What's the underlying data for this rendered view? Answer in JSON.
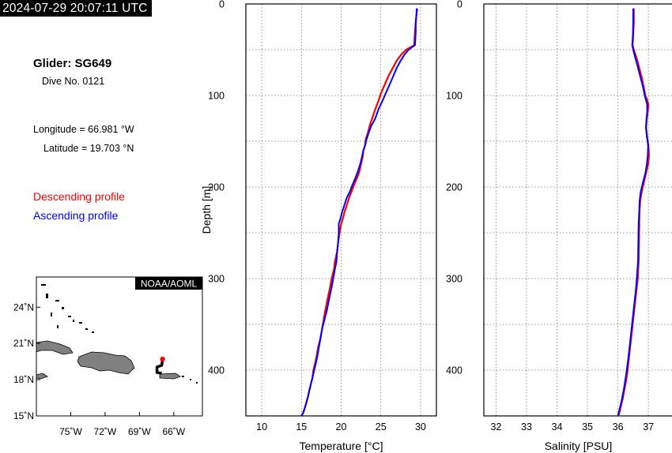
{
  "timestamp": "2024-07-29 20:07:11 UTC",
  "glider": {
    "title": "Glider: SG649",
    "dive": "Dive No. 0121",
    "longitude": "Longitude = 66.981 °W",
    "latitude": "Latitude = 19.703 °N"
  },
  "legend": {
    "descending": "Descending profile",
    "ascending": "Ascending profile"
  },
  "colors": {
    "descending": "#ff0000",
    "ascending": "#0000ff",
    "land": "#808080",
    "track": "#000000",
    "position": "#ff0000"
  },
  "map": {
    "badge": "NOAA/AOML",
    "lat_ticks": [
      {
        "v": 24,
        "label": "24˚N"
      },
      {
        "v": 21,
        "label": "21˚N"
      },
      {
        "v": 18,
        "label": "18˚N"
      },
      {
        "v": 15,
        "label": "15˚N"
      }
    ],
    "lon_ticks": [
      {
        "v": -75,
        "label": "75˚W"
      },
      {
        "v": -72,
        "label": "72˚W"
      },
      {
        "v": -69,
        "label": "69˚W"
      },
      {
        "v": -66,
        "label": "66˚W"
      }
    ],
    "lon_range": [
      -78,
      -63.5
    ],
    "lat_range": [
      15,
      26.5
    ],
    "glider_position": {
      "lon": -66.981,
      "lat": 19.703
    },
    "icon": "region-map"
  },
  "chart_data": [
    {
      "type": "line",
      "xlabel": "Temperature [°C]",
      "ylabel": "Depth [m]",
      "xlim": [
        8,
        32
      ],
      "ylim": [
        450,
        0
      ],
      "xticks": [
        10,
        15,
        20,
        25,
        30
      ],
      "yticks": [
        0,
        100,
        200,
        300,
        400
      ],
      "grid": true,
      "series": [
        {
          "name": "Descending profile",
          "x": [
            29.6,
            29.5,
            29.4,
            29.3,
            29.2,
            28.2,
            27.6,
            27.0,
            26.5,
            26.0,
            25.5,
            25.0,
            24.7,
            24.3,
            23.9,
            23.6,
            23.4,
            23.1,
            23.0,
            22.8,
            22.7,
            22.5,
            22.3,
            22.0,
            21.6,
            21.3,
            21.0,
            20.7,
            20.4,
            20.2,
            20.0,
            19.8,
            19.6,
            19.5,
            19.2,
            19.1,
            18.8,
            18.6,
            18.3,
            18.0,
            17.8,
            17.6,
            17.4,
            17.1,
            16.9,
            16.7,
            16.5,
            16.4,
            16.2,
            16.0,
            15.8,
            15.6,
            15.4,
            15.2,
            15.0
          ],
          "y": [
            5,
            10,
            20,
            30,
            45,
            50,
            55,
            62,
            70,
            78,
            88,
            98,
            106,
            115,
            125,
            133,
            140,
            148,
            155,
            160,
            168,
            175,
            183,
            190,
            198,
            205,
            212,
            220,
            228,
            235,
            240,
            250,
            262,
            270,
            282,
            290,
            300,
            310,
            322,
            335,
            345,
            355,
            365,
            375,
            385,
            393,
            400,
            408,
            415,
            422,
            430,
            436,
            442,
            447,
            450
          ]
        },
        {
          "name": "Ascending profile",
          "x": [
            29.5,
            29.5,
            29.4,
            29.4,
            29.3,
            28.5,
            28.0,
            27.5,
            27.0,
            26.6,
            26.1,
            25.6,
            25.2,
            24.7,
            24.3,
            23.8,
            23.5,
            23.2,
            23.0,
            22.8,
            22.6,
            22.4,
            22.1,
            21.8,
            21.4,
            21.1,
            20.7,
            20.4,
            20.1,
            19.9,
            19.7,
            19.7,
            19.6,
            19.5,
            19.4,
            19.2,
            19.0,
            18.8,
            18.5,
            18.2,
            17.9,
            17.6,
            17.4,
            17.2,
            17.0,
            16.8,
            16.6,
            16.4,
            16.2,
            16.0,
            15.8,
            15.6,
            15.4,
            15.2,
            15.0
          ],
          "y": [
            5,
            10,
            20,
            30,
            45,
            50,
            55,
            62,
            70,
            78,
            88,
            98,
            106,
            115,
            125,
            133,
            140,
            148,
            155,
            160,
            168,
            175,
            183,
            190,
            198,
            205,
            212,
            220,
            228,
            235,
            240,
            250,
            262,
            270,
            282,
            290,
            300,
            310,
            322,
            335,
            345,
            355,
            365,
            375,
            385,
            393,
            400,
            408,
            415,
            422,
            430,
            436,
            442,
            447,
            450
          ]
        }
      ]
    },
    {
      "type": "line",
      "xlabel": "Salinity [PSU]",
      "ylabel": "",
      "xlim": [
        31.6,
        37.8
      ],
      "ylim": [
        450,
        0
      ],
      "xticks": [
        32,
        33,
        34,
        35,
        36,
        37
      ],
      "yticks": [
        0,
        100,
        200,
        300,
        400
      ],
      "grid": true,
      "series": [
        {
          "name": "Descending profile",
          "x": [
            36.52,
            36.52,
            36.5,
            36.48,
            36.52,
            36.62,
            36.7,
            36.78,
            36.84,
            36.9,
            36.96,
            37.0,
            36.98,
            36.95,
            36.92,
            36.95,
            37.0,
            37.02,
            36.99,
            36.92,
            36.85,
            36.78,
            36.73,
            36.71,
            36.7,
            36.69,
            36.68,
            36.65,
            36.6,
            36.55,
            36.5,
            36.45,
            36.4,
            36.35,
            36.3,
            36.22,
            36.15,
            36.08,
            36.02
          ],
          "y": [
            5,
            20,
            35,
            45,
            50,
            60,
            70,
            80,
            90,
            100,
            105,
            110,
            118,
            125,
            135,
            145,
            155,
            165,
            175,
            185,
            195,
            205,
            215,
            225,
            240,
            260,
            280,
            300,
            315,
            330,
            345,
            360,
            375,
            390,
            405,
            420,
            432,
            442,
            450
          ]
        },
        {
          "name": "Ascending profile",
          "x": [
            36.5,
            36.5,
            36.49,
            36.47,
            36.5,
            36.58,
            36.66,
            36.74,
            36.82,
            36.88,
            36.92,
            36.96,
            36.96,
            36.94,
            36.92,
            36.96,
            36.99,
            36.98,
            36.95,
            36.9,
            36.82,
            36.75,
            36.71,
            36.7,
            36.68,
            36.67,
            36.66,
            36.62,
            36.58,
            36.53,
            36.48,
            36.43,
            36.38,
            36.33,
            36.27,
            36.2,
            36.13,
            36.06,
            36.0
          ],
          "y": [
            5,
            20,
            35,
            45,
            50,
            60,
            70,
            80,
            90,
            100,
            105,
            110,
            118,
            125,
            135,
            145,
            155,
            165,
            175,
            185,
            195,
            205,
            215,
            225,
            240,
            260,
            280,
            300,
            315,
            330,
            345,
            360,
            375,
            390,
            405,
            420,
            432,
            442,
            450
          ]
        }
      ]
    }
  ]
}
